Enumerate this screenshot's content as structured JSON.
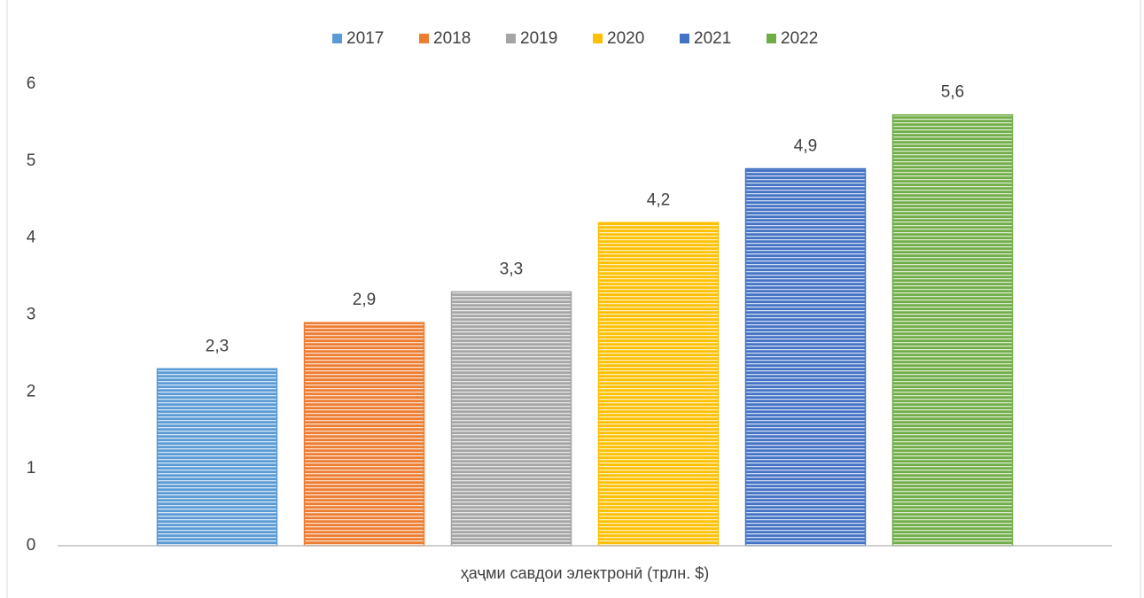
{
  "chart_data": {
    "type": "bar",
    "categories": [
      "ҳаҷми савдои электронӣ (трлн. $)"
    ],
    "series": [
      {
        "name": "2017",
        "color": "#5b9bd5",
        "values": [
          2.3
        ],
        "value_labels": [
          "2,3"
        ]
      },
      {
        "name": "2018",
        "color": "#ed7d31",
        "values": [
          2.9
        ],
        "value_labels": [
          "2,9"
        ]
      },
      {
        "name": "2019",
        "color": "#a5a5a5",
        "values": [
          3.3
        ],
        "value_labels": [
          "3,3"
        ]
      },
      {
        "name": "2020",
        "color": "#ffc000",
        "values": [
          4.2
        ],
        "value_labels": [
          "4,2"
        ]
      },
      {
        "name": "2021",
        "color": "#4472c4",
        "values": [
          4.9
        ],
        "value_labels": [
          "4,9"
        ]
      },
      {
        "name": "2022",
        "color": "#70ad47",
        "values": [
          5.6
        ],
        "value_labels": [
          "5,6"
        ]
      }
    ],
    "ylim": [
      0,
      6
    ],
    "yticks": [
      0,
      1,
      2,
      3,
      4,
      5,
      6
    ],
    "grid": false,
    "legend": "top"
  }
}
